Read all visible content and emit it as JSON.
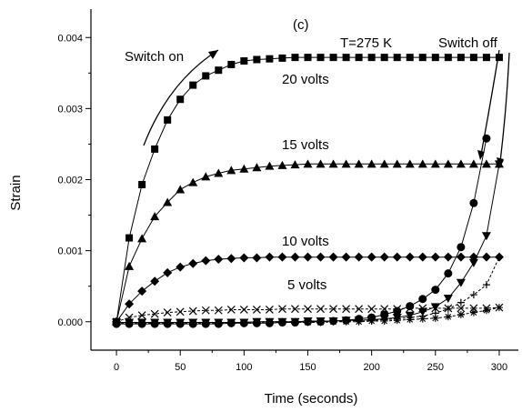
{
  "chart_data": {
    "type": "scatter",
    "panel_label": "(c)",
    "xlabel": "Time (seconds)",
    "ylabel": "Strain",
    "xlim": [
      -20,
      315
    ],
    "ylim": [
      -0.0004,
      0.0044
    ],
    "xticks": [
      0,
      50,
      100,
      150,
      200,
      250,
      300
    ],
    "xtick_labels": [
      "0",
      "50",
      "100",
      "150",
      "200",
      "250",
      "300"
    ],
    "yticks": [
      0,
      0.001,
      0.002,
      0.003,
      0.004
    ],
    "ytick_labels": [
      "0.000",
      "0.001",
      "0.002",
      "0.003",
      "0.004"
    ],
    "grid": false,
    "annotations": {
      "temperature": "T=275 K",
      "switch_on": "Switch on",
      "switch_off": "Switch off",
      "label_20": "20 volts",
      "label_15": "15 volts",
      "label_10": "10 volts",
      "label_5": "5 volts"
    },
    "series": [
      {
        "marker": "square",
        "x": [
          0,
          10,
          20,
          30,
          40,
          50,
          60,
          70,
          80,
          90,
          100,
          110,
          120,
          130,
          140,
          150,
          160,
          170,
          180,
          190,
          200,
          210,
          220,
          230,
          240,
          250,
          260,
          270,
          280,
          290,
          300
        ],
        "y": [
          0.0,
          0.00118,
          0.00193,
          0.00243,
          0.00284,
          0.00313,
          0.00333,
          0.00346,
          0.00354,
          0.00362,
          0.00367,
          0.00369,
          0.0037,
          0.00371,
          0.00372,
          0.00372,
          0.00372,
          0.00372,
          0.00372,
          0.00372,
          0.00372,
          0.00372,
          0.00372,
          0.00372,
          0.00372,
          0.00372,
          0.00372,
          0.00372,
          0.00372,
          0.00372,
          0.00372
        ]
      },
      {
        "marker": "triangle",
        "x": [
          0,
          10,
          20,
          30,
          40,
          50,
          60,
          70,
          80,
          90,
          100,
          110,
          120,
          130,
          140,
          150,
          160,
          170,
          180,
          190,
          200,
          210,
          220,
          230,
          240,
          250,
          260,
          270,
          280,
          290,
          300
        ],
        "y": [
          0.0,
          0.00078,
          0.00117,
          0.00148,
          0.00168,
          0.00186,
          0.00196,
          0.00204,
          0.00209,
          0.00213,
          0.00215,
          0.00217,
          0.00219,
          0.0022,
          0.00221,
          0.00222,
          0.00222,
          0.00222,
          0.00222,
          0.00222,
          0.00222,
          0.00222,
          0.00222,
          0.00222,
          0.00222,
          0.00222,
          0.00222,
          0.00222,
          0.00222,
          0.00222,
          0.00222
        ]
      },
      {
        "marker": "diamond",
        "x": [
          0,
          10,
          20,
          30,
          40,
          50,
          60,
          70,
          80,
          90,
          100,
          110,
          120,
          130,
          140,
          150,
          160,
          170,
          180,
          190,
          200,
          210,
          220,
          230,
          240,
          250,
          260,
          270,
          280,
          290,
          300
        ],
        "y": [
          0.0,
          0.00025,
          0.00043,
          0.00057,
          0.00069,
          0.00077,
          0.00082,
          0.00086,
          0.00088,
          0.00089,
          0.0009,
          0.0009,
          0.00091,
          0.00091,
          0.00091,
          0.00091,
          0.00091,
          0.00091,
          0.00091,
          0.00091,
          0.00091,
          0.00091,
          0.00091,
          0.00091,
          0.00091,
          0.00091,
          0.00091,
          0.00091,
          0.00091,
          0.00091,
          0.00091
        ]
      },
      {
        "marker": "x",
        "x": [
          0,
          10,
          20,
          30,
          40,
          50,
          60,
          70,
          80,
          90,
          100,
          110,
          120,
          130,
          140,
          150,
          160,
          170,
          180,
          190,
          200,
          210,
          220,
          230,
          240,
          250,
          260,
          270,
          280,
          290,
          300
        ],
        "y": [
          0.0,
          6e-05,
          9e-05,
          0.00011,
          0.00013,
          0.00014,
          0.00015,
          0.00016,
          0.00016,
          0.00017,
          0.00017,
          0.00017,
          0.00017,
          0.00018,
          0.00018,
          0.00018,
          0.00018,
          0.00018,
          0.00018,
          0.00018,
          0.00018,
          0.00018,
          0.00018,
          0.00019,
          0.00019,
          0.00019,
          0.00019,
          0.00019,
          0.00019,
          0.00019,
          0.0002
        ]
      },
      {
        "marker": "circle",
        "x": [
          0,
          10,
          20,
          30,
          40,
          50,
          60,
          70,
          80,
          90,
          100,
          110,
          120,
          130,
          140,
          150,
          160,
          170,
          180,
          190,
          200,
          210,
          220,
          230,
          240,
          250,
          260,
          270,
          280,
          290,
          300
        ],
        "y": [
          -3e-05,
          -3e-05,
          -3e-05,
          -3e-05,
          -3e-05,
          -3e-05,
          -3e-05,
          -3e-05,
          -3e-05,
          -2e-05,
          -2e-05,
          -2e-05,
          -2e-05,
          -1e-05,
          -1e-05,
          0.0,
          0.0,
          1e-05,
          2e-05,
          4e-05,
          6e-05,
          0.0001,
          0.00015,
          0.00022,
          0.00032,
          0.00045,
          0.00068,
          0.00105,
          0.00167,
          0.00258,
          null
        ]
      },
      {
        "marker": "triangle-down",
        "x": [
          0,
          10,
          20,
          30,
          40,
          50,
          60,
          70,
          80,
          90,
          100,
          110,
          120,
          130,
          140,
          150,
          160,
          170,
          180,
          190,
          200,
          210,
          220,
          230,
          240,
          250,
          260,
          270,
          280,
          290,
          300
        ],
        "y": [
          -1e-05,
          -1e-05,
          -1e-05,
          -1e-05,
          -1e-05,
          -1e-05,
          -1e-05,
          -1e-05,
          -1e-05,
          -1e-05,
          -1e-05,
          0.0,
          0.0,
          0.0,
          0.0,
          1e-05,
          1e-05,
          1e-05,
          2e-05,
          2e-05,
          3e-05,
          4e-05,
          6e-05,
          9e-05,
          0.00014,
          0.00021,
          0.00033,
          0.00055,
          0.00083,
          0.00121,
          0.00222
        ]
      },
      {
        "marker": "plus",
        "x": [
          0,
          10,
          20,
          30,
          40,
          50,
          60,
          70,
          80,
          90,
          100,
          110,
          120,
          130,
          140,
          150,
          160,
          170,
          180,
          190,
          200,
          210,
          220,
          230,
          240,
          250,
          260,
          270,
          280,
          290,
          300
        ],
        "y": [
          -1e-05,
          -1e-05,
          -1e-05,
          -1e-05,
          -1e-05,
          -1e-05,
          -1e-05,
          -1e-05,
          -1e-05,
          -1e-05,
          -1e-05,
          0.0,
          0.0,
          0.0,
          0.0,
          0.0,
          0.0,
          1e-05,
          1e-05,
          2e-05,
          2e-05,
          3e-05,
          4e-05,
          6e-05,
          8e-05,
          0.00012,
          0.00018,
          0.00027,
          0.00038,
          0.00052,
          0.00091
        ]
      },
      {
        "marker": "asterisk",
        "x": [
          0,
          10,
          20,
          30,
          40,
          50,
          60,
          70,
          80,
          90,
          100,
          110,
          120,
          130,
          140,
          150,
          160,
          170,
          180,
          190,
          200,
          210,
          220,
          230,
          240,
          250,
          260,
          270,
          280,
          290,
          300
        ],
        "y": [
          -2e-05,
          -2e-05,
          -2e-05,
          -2e-05,
          -2e-05,
          -2e-05,
          -2e-05,
          -2e-05,
          -2e-05,
          -2e-05,
          -2e-05,
          -2e-05,
          -1e-05,
          -1e-05,
          -1e-05,
          -1e-05,
          -1e-05,
          0.0,
          0.0,
          0.0,
          1e-05,
          1e-05,
          2e-05,
          3e-05,
          4e-05,
          5e-05,
          7e-05,
          0.0001,
          0.00013,
          0.00016,
          0.0002
        ]
      }
    ]
  }
}
